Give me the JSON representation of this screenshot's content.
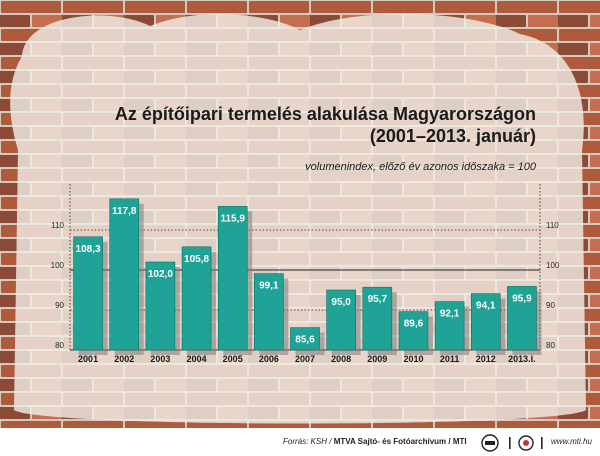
{
  "title_line1": "Az építőipari termelés alakulása Magyarországon",
  "title_line2": "(2001–2013. január)",
  "subtitle": "volumenindex, előző év azonos időszaka = 100",
  "footer": {
    "source_prefix": "Forrás: KSH /",
    "source_bold": "MTVA Sajtó- és Fotóarchívum / MTI",
    "logo1_icon": "mtva-logo-icon",
    "logo2_icon": "mti-logo-icon",
    "website": "www.mti.hu"
  },
  "colors": {
    "bar": "#1ea396",
    "bar_edge": "#0c6f66",
    "shadow": "#7d7d7d"
  },
  "chart_data": {
    "type": "bar",
    "title": "Az építőipari termelés alakulása Magyarországon (2001–2013. január)",
    "subtitle": "volumenindex, előző év azonos időszaka = 100",
    "categories": [
      "2001",
      "2002",
      "2003",
      "2004",
      "2005",
      "2006",
      "2007",
      "2008",
      "2009",
      "2010",
      "2011",
      "2012",
      "2013.I."
    ],
    "values": [
      108.3,
      117.8,
      102.0,
      105.8,
      115.9,
      99.1,
      85.6,
      95.0,
      95.7,
      89.6,
      92.1,
      94.1,
      95.9
    ],
    "value_labels": [
      "108,3",
      "117,8",
      "102,0",
      "105,8",
      "115,9",
      "99,1",
      "85,6",
      "95,0",
      "95,7",
      "89,6",
      "92,1",
      "94,1",
      "95,9"
    ],
    "y_ticks": [
      "80",
      "90",
      "100",
      "110"
    ],
    "ylim": [
      80,
      120
    ],
    "reference_line": 100,
    "grid": "dotted"
  }
}
